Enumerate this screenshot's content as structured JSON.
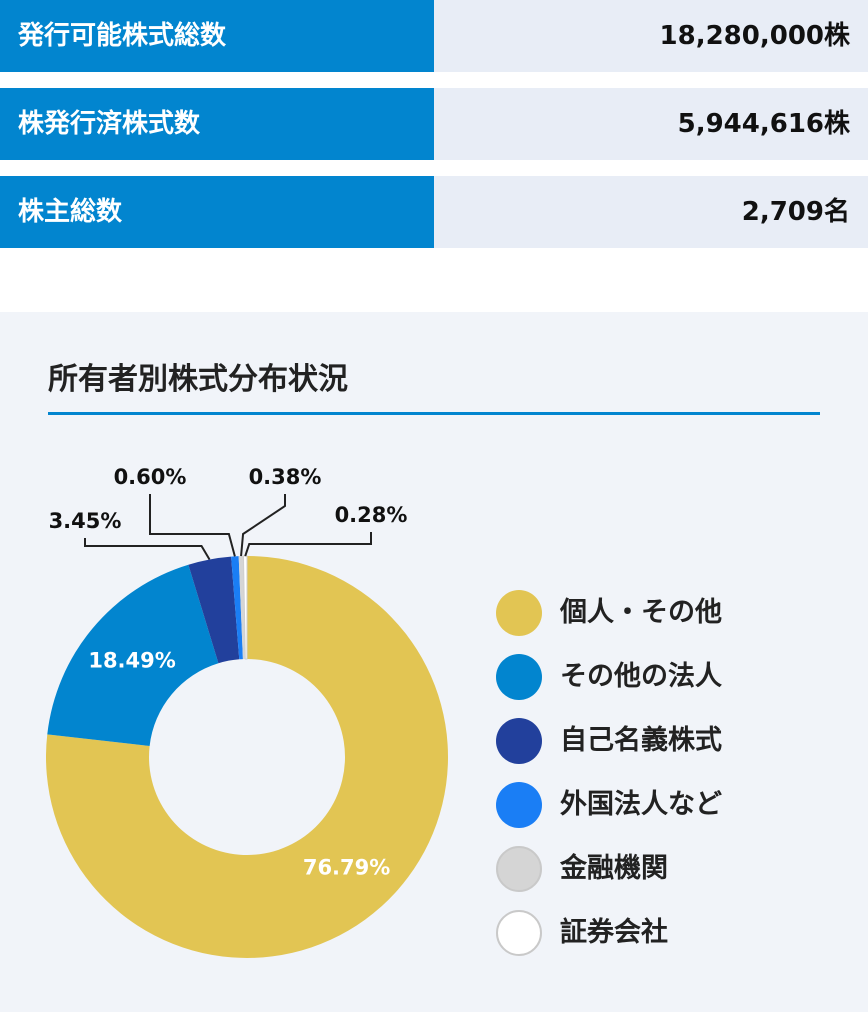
{
  "stats": [
    {
      "label": "発行可能株式総数",
      "value": "18,280,000株"
    },
    {
      "label": "株発行済株式数",
      "value": "5,944,616株"
    },
    {
      "label": "株主総数",
      "value": "2,709名"
    }
  ],
  "colors": {
    "stat_label_bg": "#0285cf",
    "stat_value_bg": "#e8edf6",
    "panel_bg": "#f1f4f9",
    "accent": "#0285cf"
  },
  "chart_data": {
    "type": "pie",
    "title": "所有者別株式分布状況",
    "donut": true,
    "legend_position": "right",
    "slices": [
      {
        "name": "個人・その他",
        "value": 76.79,
        "label": "76.79%",
        "color": "#e2c553"
      },
      {
        "name": "その他の法人",
        "value": 18.49,
        "label": "18.49%",
        "color": "#0285cf"
      },
      {
        "name": "自己名義株式",
        "value": 3.45,
        "label": "3.45%",
        "color": "#22409c"
      },
      {
        "name": "外国法人など",
        "value": 0.6,
        "label": "0.60%",
        "color": "#1a7ef5"
      },
      {
        "name": "金融機関",
        "value": 0.38,
        "label": "0.38%",
        "color": "#d5d5d5"
      },
      {
        "name": "証券会社",
        "value": 0.28,
        "label": "0.28%",
        "color": "#ffffff"
      }
    ]
  }
}
